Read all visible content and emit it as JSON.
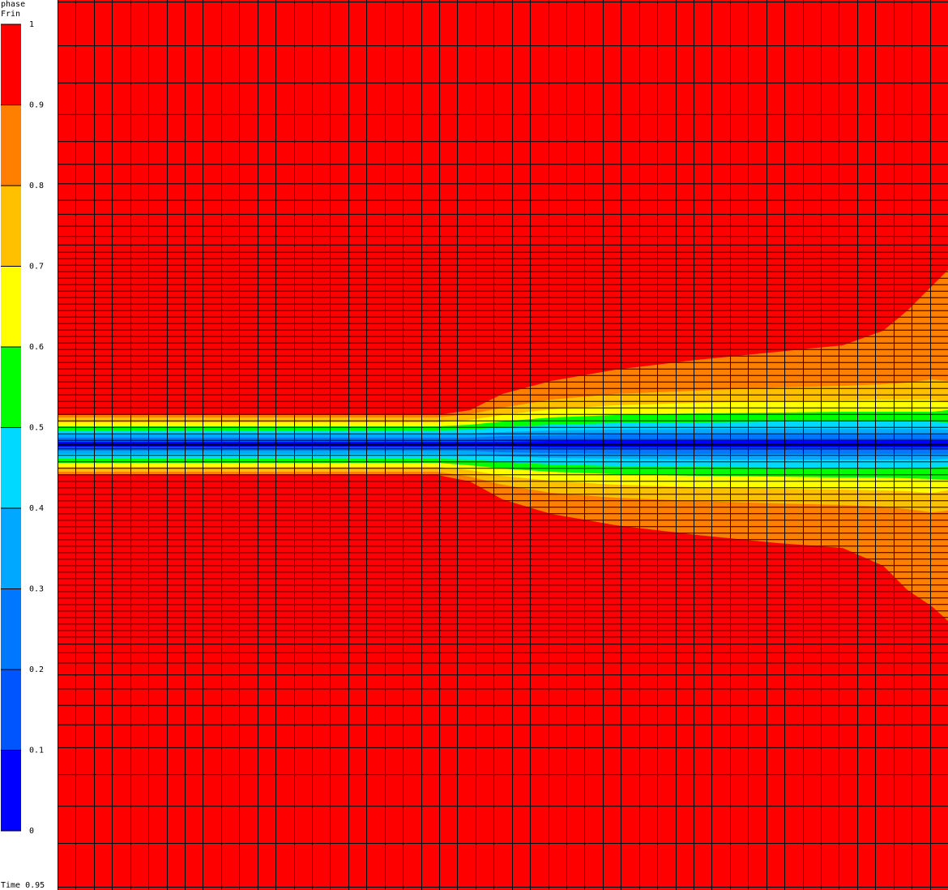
{
  "legend": {
    "title_line1": "phase",
    "title_line2": "Frin",
    "bands": [
      {
        "from": 0.0,
        "to": 0.1,
        "color": "#0000ff"
      },
      {
        "from": 0.1,
        "to": 0.2,
        "color": "#0055ff"
      },
      {
        "from": 0.2,
        "to": 0.3,
        "color": "#0077ff"
      },
      {
        "from": 0.3,
        "to": 0.4,
        "color": "#00a8ff"
      },
      {
        "from": 0.4,
        "to": 0.5,
        "color": "#00d9ff"
      },
      {
        "from": 0.5,
        "to": 0.6,
        "color": "#00ff00"
      },
      {
        "from": 0.6,
        "to": 0.7,
        "color": "#ffff00"
      },
      {
        "from": 0.7,
        "to": 0.8,
        "color": "#ffc000"
      },
      {
        "from": 0.8,
        "to": 0.9,
        "color": "#ff8000"
      },
      {
        "from": 0.9,
        "to": 1.0,
        "color": "#ff0000"
      }
    ],
    "ticks": [
      "0",
      "0.1",
      "0.2",
      "0.3",
      "0.4",
      "0.5",
      "0.6",
      "0.7",
      "0.8",
      "0.9",
      "1"
    ]
  },
  "time_label": "Time 0.95",
  "chart_data": {
    "type": "heatmap",
    "field": "phase Frin",
    "colorbar_range": [
      0,
      1
    ],
    "colorbar_levels": [
      0,
      0.1,
      0.2,
      0.3,
      0.4,
      0.5,
      0.6,
      0.7,
      0.8,
      0.9,
      1.0
    ],
    "time": 0.95,
    "mesh_grid": "on",
    "background_value": 1.0,
    "core_value": 0.0
  }
}
